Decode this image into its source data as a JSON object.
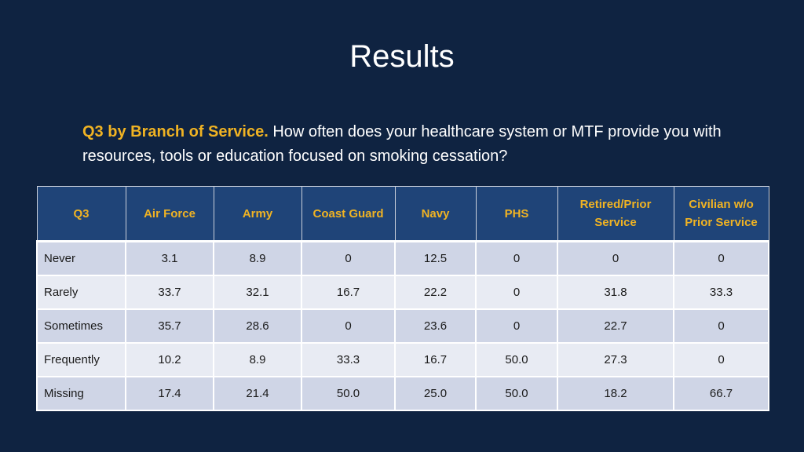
{
  "title": "Results",
  "question": {
    "lead": "Q3 by Branch of Service.",
    "text": " How often does your healthcare system or MTF provide you with resources, tools or education focused on smoking cessation?"
  },
  "table": {
    "headers": [
      "Q3",
      "Air Force",
      "Army",
      "Coast Guard",
      "Navy",
      "PHS",
      "Retired/Prior Service",
      "Civilian w/o Prior Service"
    ],
    "rows": [
      [
        "Never",
        "3.1",
        "8.9",
        "0",
        "12.5",
        "0",
        "0",
        "0"
      ],
      [
        "Rarely",
        "33.7",
        "32.1",
        "16.7",
        "22.2",
        "0",
        "31.8",
        "33.3"
      ],
      [
        "Sometimes",
        "35.7",
        "28.6",
        "0",
        "23.6",
        "0",
        "22.7",
        "0"
      ],
      [
        "Frequently",
        "10.2",
        "8.9",
        "33.3",
        "16.7",
        "50.0",
        "27.3",
        "0"
      ],
      [
        "Missing",
        "17.4",
        "21.4",
        "50.0",
        "25.0",
        "50.0",
        "18.2",
        "66.7"
      ]
    ]
  },
  "colors": {
    "background": "#0f2341",
    "header_fill": "#1f4478",
    "accent": "#f0b323",
    "row_dark": "#cfd5e6",
    "row_light": "#e8ebf3"
  }
}
